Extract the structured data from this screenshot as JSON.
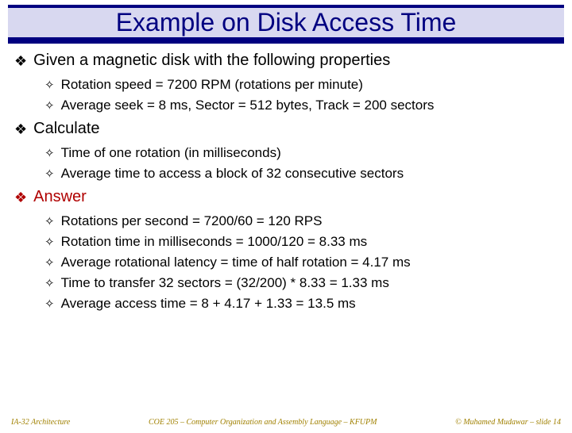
{
  "title": "Example on Disk Access Time",
  "sections": [
    {
      "label": "Given a magnetic disk with the following properties",
      "color": "#000000",
      "items": [
        "Rotation speed = 7200 RPM (rotations per minute)",
        "Average seek = 8 ms, Sector = 512 bytes, Track = 200 sectors"
      ]
    },
    {
      "label": "Calculate",
      "color": "#000000",
      "items": [
        "Time of one rotation (in milliseconds)",
        "Average time to access a block of 32 consecutive sectors"
      ]
    },
    {
      "label": "Answer",
      "color": "#b00000",
      "items": [
        "Rotations per second   = 7200/60 = 120 RPS",
        "Rotation time in milliseconds = 1000/120 = 8.33 ms",
        "Average rotational latency = time of half rotation = 4.17 ms",
        "Time to transfer 32 sectors = (32/200) * 8.33 = 1.33 ms",
        "Average access time = 8 + 4.17 + 1.33 = 13.5 ms"
      ]
    }
  ],
  "footer": {
    "left": "IA-32 Architecture",
    "center": "COE 205 – Computer Organization and Assembly Language – KFUPM",
    "right": "© Muhamed Mudawar – slide 14"
  },
  "bullets": {
    "l1": "❖",
    "l2": "✧"
  }
}
